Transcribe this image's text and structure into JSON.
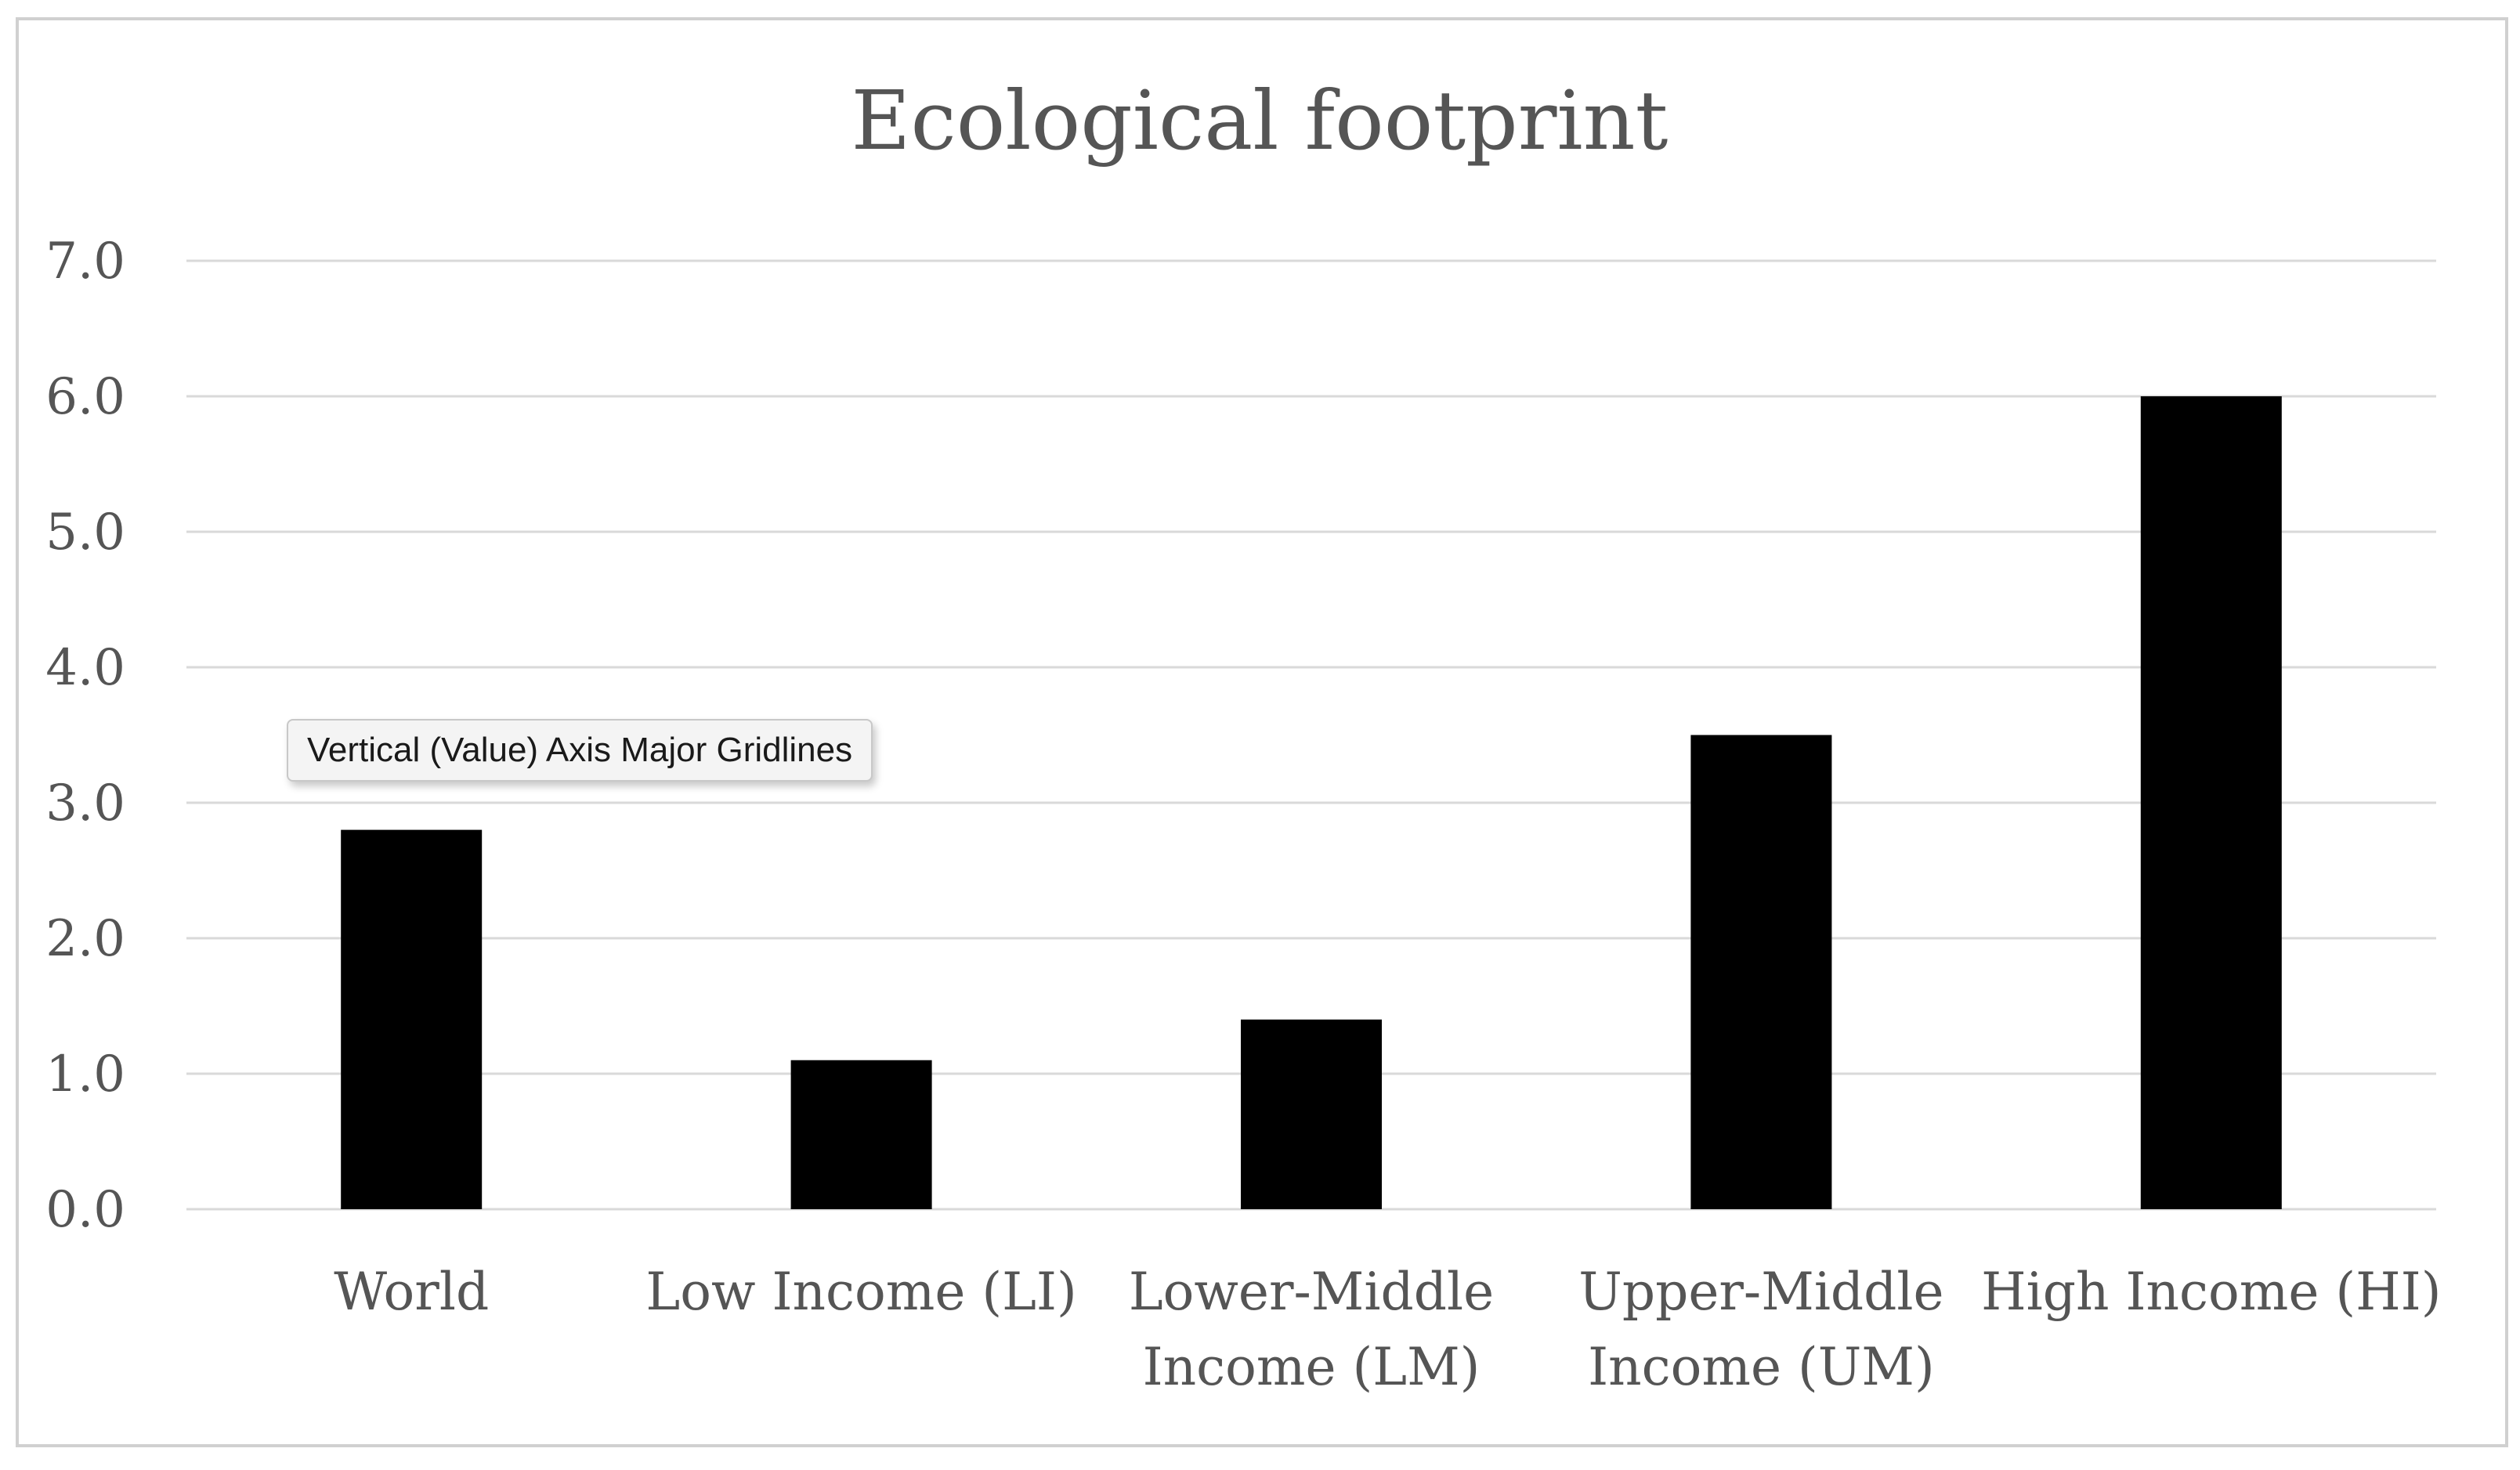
{
  "chart_data": {
    "type": "bar",
    "title": "Ecological footprint",
    "xlabel": "",
    "ylabel": "",
    "categories": [
      [
        "World"
      ],
      [
        "Low Income (LI)"
      ],
      [
        "Lower-Middle",
        "Income (LM)"
      ],
      [
        "Upper-Middle",
        "Income (UM)"
      ],
      [
        "High Income (HI)"
      ]
    ],
    "values": [
      2.8,
      1.1,
      1.4,
      3.5,
      6.0
    ],
    "ylim": [
      0,
      7
    ],
    "yticks": [
      "0.0",
      "1.0",
      "2.0",
      "3.0",
      "4.0",
      "5.0",
      "6.0",
      "7.0"
    ],
    "grid": true,
    "legend": "none",
    "bar_color": "#000000",
    "gridline_color": "#d9d9d9"
  },
  "tooltip": {
    "text": "Vertical (Value) Axis Major Gridlines"
  }
}
